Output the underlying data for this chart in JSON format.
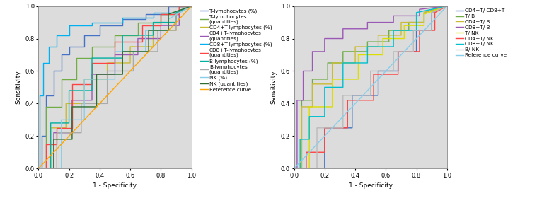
{
  "fig_width": 7.76,
  "fig_height": 2.87,
  "dpi": 100,
  "bg_color": "#dcdcdc",
  "plot1": {
    "xlabel": "1 - Specificity",
    "ylabel": "Sensitivity",
    "xlim": [
      0,
      1
    ],
    "ylim": [
      0,
      1
    ],
    "xticks": [
      0.0,
      0.2,
      0.4,
      0.6,
      0.8,
      1.0
    ],
    "yticks": [
      0.0,
      0.2,
      0.4,
      0.6,
      0.8,
      1.0
    ],
    "curves": [
      {
        "label": "T-lymphocytes (%)",
        "color": "#4472C4",
        "fpr": [
          0.0,
          0.02,
          0.02,
          0.05,
          0.05,
          0.1,
          0.1,
          0.15,
          0.15,
          0.2,
          0.2,
          0.3,
          0.3,
          0.4,
          0.4,
          0.55,
          0.55,
          0.7,
          0.7,
          0.85,
          0.85,
          1.0
        ],
        "tpr": [
          0.0,
          0.0,
          0.2,
          0.2,
          0.45,
          0.45,
          0.6,
          0.6,
          0.7,
          0.7,
          0.75,
          0.75,
          0.82,
          0.82,
          0.88,
          0.88,
          0.92,
          0.92,
          0.95,
          0.95,
          1.0,
          1.0
        ]
      },
      {
        "label": "T-lymphocytes\n(quantities)",
        "color": "#70AD47",
        "fpr": [
          0.0,
          0.05,
          0.05,
          0.15,
          0.15,
          0.25,
          0.25,
          0.35,
          0.35,
          0.5,
          0.5,
          0.65,
          0.65,
          0.8,
          0.8,
          0.92,
          0.92,
          1.0
        ],
        "tpr": [
          0.0,
          0.0,
          0.38,
          0.38,
          0.55,
          0.55,
          0.68,
          0.68,
          0.75,
          0.75,
          0.82,
          0.82,
          0.9,
          0.9,
          0.95,
          0.95,
          1.0,
          1.0
        ]
      },
      {
        "label": "CD4+T-lymphocytes (%)",
        "color": "#C9BC35",
        "fpr": [
          0.0,
          0.08,
          0.08,
          0.18,
          0.18,
          0.3,
          0.3,
          0.45,
          0.45,
          0.6,
          0.6,
          0.75,
          0.75,
          0.9,
          0.9,
          1.0
        ],
        "tpr": [
          0.0,
          0.0,
          0.25,
          0.25,
          0.4,
          0.4,
          0.55,
          0.55,
          0.65,
          0.65,
          0.75,
          0.75,
          0.85,
          0.85,
          0.95,
          1.0
        ]
      },
      {
        "label": "CD4+T-lymphocytes\n(quantities)",
        "color": "#9B59B6",
        "fpr": [
          0.0,
          0.1,
          0.1,
          0.22,
          0.22,
          0.35,
          0.35,
          0.5,
          0.5,
          0.65,
          0.65,
          0.8,
          0.8,
          0.92,
          0.92,
          1.0
        ],
        "tpr": [
          0.0,
          0.0,
          0.22,
          0.22,
          0.42,
          0.42,
          0.58,
          0.58,
          0.7,
          0.7,
          0.8,
          0.8,
          0.88,
          0.88,
          0.96,
          1.0
        ]
      },
      {
        "label": "CD8+T-lymphocytes (%)",
        "color": "#00B0F0",
        "fpr": [
          0.0,
          0.01,
          0.01,
          0.03,
          0.03,
          0.07,
          0.07,
          0.12,
          0.12,
          0.2,
          0.2,
          0.35,
          0.35,
          0.55,
          0.55,
          0.75,
          0.75,
          0.92,
          0.92,
          1.0
        ],
        "tpr": [
          0.0,
          0.0,
          0.45,
          0.45,
          0.65,
          0.65,
          0.75,
          0.75,
          0.82,
          0.82,
          0.88,
          0.88,
          0.9,
          0.9,
          0.93,
          0.93,
          0.96,
          0.96,
          1.0,
          1.0
        ]
      },
      {
        "label": "CD8+T-lymphocytes\n(quantities)",
        "color": "#FF4444",
        "fpr": [
          0.0,
          0.05,
          0.05,
          0.12,
          0.12,
          0.22,
          0.22,
          0.35,
          0.35,
          0.5,
          0.5,
          0.68,
          0.68,
          0.8,
          0.8,
          0.92,
          0.92,
          1.0
        ],
        "tpr": [
          0.0,
          0.0,
          0.15,
          0.15,
          0.25,
          0.25,
          0.52,
          0.52,
          0.65,
          0.65,
          0.78,
          0.78,
          0.88,
          0.88,
          0.95,
          0.95,
          1.0,
          1.0
        ]
      },
      {
        "label": "B-lymphocytes (%)",
        "color": "#00B0A0",
        "fpr": [
          0.0,
          0.08,
          0.08,
          0.2,
          0.2,
          0.35,
          0.35,
          0.55,
          0.55,
          0.75,
          0.75,
          0.9,
          0.9,
          1.0
        ],
        "tpr": [
          0.0,
          0.0,
          0.28,
          0.28,
          0.48,
          0.48,
          0.68,
          0.68,
          0.82,
          0.82,
          0.9,
          0.9,
          0.96,
          1.0
        ]
      },
      {
        "label": "B-lymphocytes\n(quantities)",
        "color": "#AAAAAA",
        "fpr": [
          0.0,
          0.12,
          0.12,
          0.28,
          0.28,
          0.45,
          0.45,
          0.62,
          0.62,
          0.78,
          0.78,
          0.9,
          0.9,
          1.0
        ],
        "tpr": [
          0.0,
          0.0,
          0.22,
          0.22,
          0.4,
          0.4,
          0.6,
          0.6,
          0.72,
          0.72,
          0.85,
          0.85,
          0.95,
          1.0
        ]
      },
      {
        "label": "NK (%)",
        "color": "#87CEEB",
        "fpr": [
          0.0,
          0.15,
          0.15,
          0.3,
          0.3,
          0.5,
          0.5,
          0.7,
          0.7,
          0.85,
          0.85,
          1.0
        ],
        "tpr": [
          0.0,
          0.0,
          0.3,
          0.3,
          0.55,
          0.55,
          0.72,
          0.72,
          0.85,
          0.85,
          0.92,
          1.0
        ]
      },
      {
        "label": "NK (quantities)",
        "color": "#2E6E2E",
        "fpr": [
          0.0,
          0.1,
          0.1,
          0.22,
          0.22,
          0.38,
          0.38,
          0.55,
          0.55,
          0.72,
          0.72,
          0.85,
          0.85,
          1.0
        ],
        "tpr": [
          0.0,
          0.0,
          0.18,
          0.18,
          0.38,
          0.38,
          0.58,
          0.58,
          0.72,
          0.72,
          0.85,
          0.85,
          0.95,
          1.0
        ]
      },
      {
        "label": "Reference curve",
        "color": "#FFA500",
        "fpr": [
          0.0,
          1.0
        ],
        "tpr": [
          0.0,
          1.0
        ]
      }
    ]
  },
  "plot2": {
    "xlabel": "1 - Specificity",
    "ylabel": "Sensitivity",
    "xlim": [
      0,
      1
    ],
    "ylim": [
      0,
      1
    ],
    "xticks": [
      0.0,
      0.2,
      0.4,
      0.6,
      0.8,
      1.0
    ],
    "yticks": [
      0.0,
      0.2,
      0.4,
      0.6,
      0.8,
      1.0
    ],
    "curves": [
      {
        "label": "CD4+T/ CD8+T",
        "color": "#4472C4",
        "fpr": [
          0.0,
          0.2,
          0.2,
          0.38,
          0.38,
          0.55,
          0.55,
          0.68,
          0.68,
          0.8,
          0.8,
          0.9,
          0.9,
          1.0
        ],
        "tpr": [
          0.0,
          0.0,
          0.25,
          0.25,
          0.45,
          0.45,
          0.6,
          0.6,
          0.72,
          0.72,
          0.85,
          0.85,
          0.96,
          1.0
        ]
      },
      {
        "label": "T/ B",
        "color": "#70AD47",
        "fpr": [
          0.0,
          0.05,
          0.05,
          0.12,
          0.12,
          0.22,
          0.22,
          0.32,
          0.32,
          0.48,
          0.48,
          0.62,
          0.62,
          0.75,
          0.75,
          0.85,
          0.85,
          1.0
        ],
        "tpr": [
          0.0,
          0.0,
          0.42,
          0.42,
          0.55,
          0.55,
          0.65,
          0.65,
          0.72,
          0.72,
          0.78,
          0.78,
          0.85,
          0.85,
          0.9,
          0.9,
          0.96,
          1.0
        ]
      },
      {
        "label": "CD4+T/ B",
        "color": "#C9BC35",
        "fpr": [
          0.0,
          0.05,
          0.05,
          0.12,
          0.12,
          0.25,
          0.25,
          0.4,
          0.4,
          0.55,
          0.55,
          0.7,
          0.7,
          0.85,
          0.85,
          1.0
        ],
        "tpr": [
          0.0,
          0.0,
          0.38,
          0.38,
          0.52,
          0.52,
          0.65,
          0.65,
          0.75,
          0.75,
          0.82,
          0.82,
          0.9,
          0.9,
          0.96,
          1.0
        ]
      },
      {
        "label": "CD8+T/ B",
        "color": "#9B59B6",
        "fpr": [
          0.0,
          0.02,
          0.02,
          0.06,
          0.06,
          0.12,
          0.12,
          0.2,
          0.2,
          0.32,
          0.32,
          0.48,
          0.48,
          0.65,
          0.65,
          0.82,
          0.82,
          1.0
        ],
        "tpr": [
          0.0,
          0.0,
          0.42,
          0.42,
          0.6,
          0.6,
          0.72,
          0.72,
          0.8,
          0.8,
          0.86,
          0.86,
          0.9,
          0.9,
          0.94,
          0.94,
          0.98,
          1.0
        ]
      },
      {
        "label": "T/ NK",
        "color": "#DDDD00",
        "fpr": [
          0.0,
          0.1,
          0.1,
          0.25,
          0.25,
          0.42,
          0.42,
          0.58,
          0.58,
          0.72,
          0.72,
          0.85,
          0.85,
          1.0
        ],
        "tpr": [
          0.0,
          0.0,
          0.38,
          0.38,
          0.55,
          0.55,
          0.7,
          0.7,
          0.8,
          0.8,
          0.88,
          0.88,
          0.95,
          1.0
        ]
      },
      {
        "label": "CD4+T/ NK",
        "color": "#FF4444",
        "fpr": [
          0.0,
          0.08,
          0.08,
          0.2,
          0.2,
          0.35,
          0.35,
          0.52,
          0.52,
          0.68,
          0.68,
          0.82,
          0.82,
          0.92,
          0.92,
          1.0
        ],
        "tpr": [
          0.0,
          0.0,
          0.1,
          0.1,
          0.25,
          0.25,
          0.42,
          0.42,
          0.58,
          0.58,
          0.72,
          0.72,
          0.85,
          0.85,
          0.96,
          1.0
        ]
      },
      {
        "label": "CD8+T/ NK",
        "color": "#00C0D0",
        "fpr": [
          0.0,
          0.04,
          0.04,
          0.1,
          0.1,
          0.2,
          0.2,
          0.32,
          0.32,
          0.48,
          0.48,
          0.65,
          0.65,
          0.8,
          0.8,
          1.0
        ],
        "tpr": [
          0.0,
          0.0,
          0.18,
          0.18,
          0.32,
          0.32,
          0.5,
          0.5,
          0.65,
          0.65,
          0.75,
          0.75,
          0.85,
          0.85,
          0.96,
          1.0
        ]
      },
      {
        "label": "B/ NK",
        "color": "#BBBBBB",
        "fpr": [
          0.0,
          0.15,
          0.15,
          0.32,
          0.32,
          0.5,
          0.5,
          0.65,
          0.65,
          0.78,
          0.78,
          0.9,
          0.9,
          1.0
        ],
        "tpr": [
          0.0,
          0.0,
          0.25,
          0.25,
          0.45,
          0.45,
          0.6,
          0.6,
          0.72,
          0.72,
          0.85,
          0.85,
          0.96,
          1.0
        ]
      },
      {
        "label": "Reference curve",
        "color": "#87CEEB",
        "fpr": [
          0.0,
          1.0
        ],
        "tpr": [
          0.0,
          1.0
        ]
      }
    ]
  }
}
